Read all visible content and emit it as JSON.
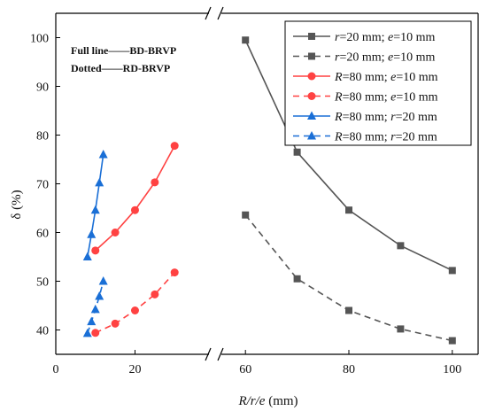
{
  "chart_data": {
    "type": "line",
    "title": "",
    "xlabel": "R/r/e (mm)",
    "ylabel": "δ (%)",
    "ylim": [
      35,
      105
    ],
    "yticks": [
      40,
      50,
      60,
      70,
      80,
      90,
      100
    ],
    "x_axis_broken": true,
    "x_segments": [
      {
        "xlim": [
          0,
          38
        ],
        "ticks": [
          0,
          20
        ]
      },
      {
        "xlim": [
          55,
          105
        ],
        "ticks": [
          60,
          80,
          100
        ]
      }
    ],
    "legend_position": "top-right",
    "annotations": [
      {
        "id": "full_line",
        "lead": "Full line",
        "tail": "BD-BRVP"
      },
      {
        "id": "dotted",
        "lead": "Dotted",
        "tail": "RD-BRVP"
      }
    ],
    "series": [
      {
        "label_parts": [
          "r",
          "=20 mm; ",
          "e",
          "=10 mm"
        ],
        "segment": 1,
        "marker": "square",
        "dash": "solid",
        "color": "#555555",
        "x": [
          60,
          70,
          80,
          90,
          100
        ],
        "y": [
          99.5,
          76.5,
          64.6,
          57.3,
          52.2
        ]
      },
      {
        "label_parts": [
          "r",
          "=20 mm; ",
          "e",
          "=10 mm"
        ],
        "segment": 1,
        "marker": "square",
        "dash": "dashed",
        "color": "#555555",
        "x": [
          60,
          70,
          80,
          90,
          100
        ],
        "y": [
          63.6,
          50.5,
          44.0,
          40.2,
          37.8
        ]
      },
      {
        "label_parts": [
          "R",
          "=80 mm; ",
          "e",
          "=10 mm"
        ],
        "segment": 0,
        "marker": "circle",
        "dash": "solid",
        "color": "#ff4242",
        "x": [
          10,
          15,
          20,
          25,
          30
        ],
        "y": [
          56.3,
          60.0,
          64.6,
          70.3,
          77.8
        ]
      },
      {
        "label_parts": [
          "R",
          "=80 mm; ",
          "e",
          "=10 mm"
        ],
        "segment": 0,
        "marker": "circle",
        "dash": "dashed",
        "color": "#ff4242",
        "x": [
          10,
          15,
          20,
          25,
          30
        ],
        "y": [
          39.4,
          41.3,
          44.0,
          47.3,
          51.8
        ]
      },
      {
        "label_parts": [
          "R",
          "=80 mm; ",
          "r",
          "=20 mm"
        ],
        "segment": 0,
        "marker": "triangle",
        "dash": "solid",
        "color": "#1a6fd6",
        "x": [
          8,
          9,
          10,
          11,
          12
        ],
        "y": [
          55.0,
          59.6,
          64.6,
          70.2,
          76.0
        ]
      },
      {
        "label_parts": [
          "R",
          "=80 mm; ",
          "r",
          "=20 mm"
        ],
        "segment": 0,
        "marker": "triangle",
        "dash": "dashed",
        "color": "#1a6fd6",
        "x": [
          8,
          9,
          10,
          11,
          12
        ],
        "y": [
          39.3,
          41.7,
          44.2,
          46.9,
          50.0
        ]
      }
    ]
  }
}
